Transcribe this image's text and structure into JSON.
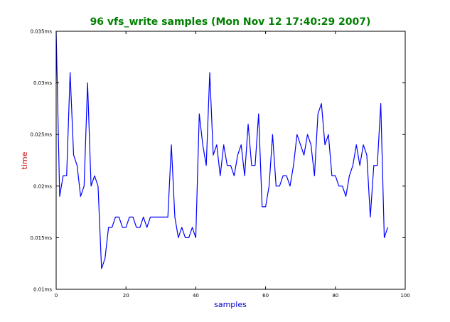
{
  "chart_data": {
    "type": "line",
    "title": "96 vfs_write samples (Mon Nov 12 17:40:29 2007)",
    "xlabel": "samples",
    "ylabel": "time",
    "xlim": [
      0,
      100
    ],
    "ylim": [
      0.01,
      0.035
    ],
    "x_ticks": [
      0,
      20,
      40,
      60,
      80,
      100
    ],
    "x_tick_labels": [
      "0",
      "20",
      "40",
      "60",
      "80",
      "100"
    ],
    "y_ticks": [
      0.01,
      0.015,
      0.02,
      0.025,
      0.03,
      0.035
    ],
    "y_tick_labels": [
      "0.01ms",
      "0.015ms",
      "0.02ms",
      "0.025ms",
      "0.03ms",
      "0.035ms"
    ],
    "grid": false,
    "colors": {
      "line": "#0000ff",
      "title": "#008000",
      "xlabel": "#0000cc",
      "ylabel": "#cc0000",
      "axes": "#000000"
    },
    "series": [
      {
        "values": [
          0.035,
          0.019,
          0.021,
          0.021,
          0.031,
          0.023,
          0.022,
          0.019,
          0.02,
          0.03,
          0.02,
          0.021,
          0.02,
          0.012,
          0.013,
          0.016,
          0.016,
          0.017,
          0.017,
          0.016,
          0.016,
          0.017,
          0.017,
          0.016,
          0.016,
          0.017,
          0.016,
          0.017,
          0.017,
          0.017,
          0.017,
          0.017,
          0.017,
          0.024,
          0.017,
          0.015,
          0.016,
          0.015,
          0.015,
          0.016,
          0.015,
          0.027,
          0.024,
          0.022,
          0.031,
          0.023,
          0.024,
          0.021,
          0.024,
          0.022,
          0.022,
          0.021,
          0.023,
          0.024,
          0.021,
          0.026,
          0.022,
          0.022,
          0.027,
          0.018,
          0.018,
          0.02,
          0.025,
          0.02,
          0.02,
          0.021,
          0.021,
          0.02,
          0.022,
          0.025,
          0.024,
          0.023,
          0.025,
          0.024,
          0.021,
          0.027,
          0.028,
          0.024,
          0.025,
          0.021,
          0.021,
          0.02,
          0.02,
          0.019,
          0.021,
          0.022,
          0.024,
          0.022,
          0.024,
          0.023,
          0.017,
          0.022,
          0.022,
          0.028,
          0.015,
          0.016
        ]
      }
    ]
  }
}
